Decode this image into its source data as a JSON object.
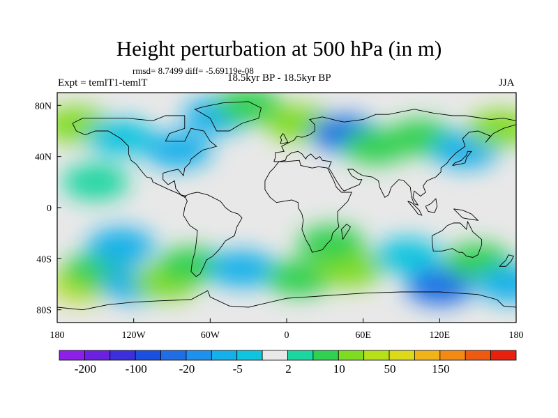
{
  "title": "Height perturbation at 500 hPa (in m)",
  "stats": "rmsd= 8.7499 diff= -5.69119e-08",
  "expt": "Expt = temlT1-temlT",
  "period": "18.5kyr BP - 18.5kyr BP",
  "season": "JJA",
  "chart_data": {
    "type": "heatmap",
    "map_projection": "cylindrical equidistant, global",
    "x_range": [
      -180,
      180
    ],
    "y_range": [
      -90,
      90
    ],
    "x_ticks": [
      "180",
      "120W",
      "60W",
      "0",
      "60E",
      "120E",
      "180"
    ],
    "x_tick_values": [
      -180,
      -120,
      -60,
      0,
      60,
      120,
      180
    ],
    "y_ticks": [
      "80N",
      "40N",
      "0",
      "40S",
      "80S"
    ],
    "y_tick_values": [
      80,
      40,
      0,
      -40,
      -80
    ],
    "colorbar": {
      "labels": [
        "-200",
        "-100",
        "-20",
        "-5",
        "2",
        "10",
        "50",
        "150"
      ],
      "colors": [
        "#8c1fe8",
        "#6b21e0",
        "#3d2fdc",
        "#1a4fe0",
        "#1f6ee6",
        "#1e90ee",
        "#15b0ea",
        "#10c4df",
        "#e8e8e8",
        "#1ad6a0",
        "#30d050",
        "#80dc22",
        "#b6e01a",
        "#dcd81a",
        "#f0b418",
        "#f28a14",
        "#ef5a12",
        "#e8200e"
      ]
    },
    "regions": [
      {
        "lon": -160,
        "lat": -60,
        "value": 35
      },
      {
        "lon": -150,
        "lat": -50,
        "value": 8
      },
      {
        "lon": -130,
        "lat": -30,
        "value": -8
      },
      {
        "lon": -120,
        "lat": -60,
        "value": -10
      },
      {
        "lon": -95,
        "lat": -58,
        "value": 15
      },
      {
        "lon": -75,
        "lat": -45,
        "value": 5
      },
      {
        "lon": -35,
        "lat": -48,
        "value": -6
      },
      {
        "lon": 10,
        "lat": -55,
        "value": 6
      },
      {
        "lon": 50,
        "lat": -48,
        "value": 12
      },
      {
        "lon": 35,
        "lat": -28,
        "value": 5
      },
      {
        "lon": 95,
        "lat": -38,
        "value": -5
      },
      {
        "lon": 120,
        "lat": -62,
        "value": -40
      },
      {
        "lon": 150,
        "lat": -42,
        "value": 6
      },
      {
        "lon": 175,
        "lat": -60,
        "value": -8
      },
      {
        "lon": -165,
        "lat": 65,
        "value": 10
      },
      {
        "lon": -130,
        "lat": 55,
        "value": -5
      },
      {
        "lon": -85,
        "lat": 45,
        "value": -10
      },
      {
        "lon": -55,
        "lat": 72,
        "value": -10
      },
      {
        "lon": -30,
        "lat": 80,
        "value": 8
      },
      {
        "lon": 10,
        "lat": 66,
        "value": 10
      },
      {
        "lon": 45,
        "lat": 58,
        "value": -25
      },
      {
        "lon": 70,
        "lat": 48,
        "value": 5
      },
      {
        "lon": 105,
        "lat": 55,
        "value": 8
      },
      {
        "lon": 140,
        "lat": 45,
        "value": -6
      },
      {
        "lon": 168,
        "lat": 62,
        "value": 10
      },
      {
        "lon": -150,
        "lat": 20,
        "value": 4
      }
    ]
  }
}
